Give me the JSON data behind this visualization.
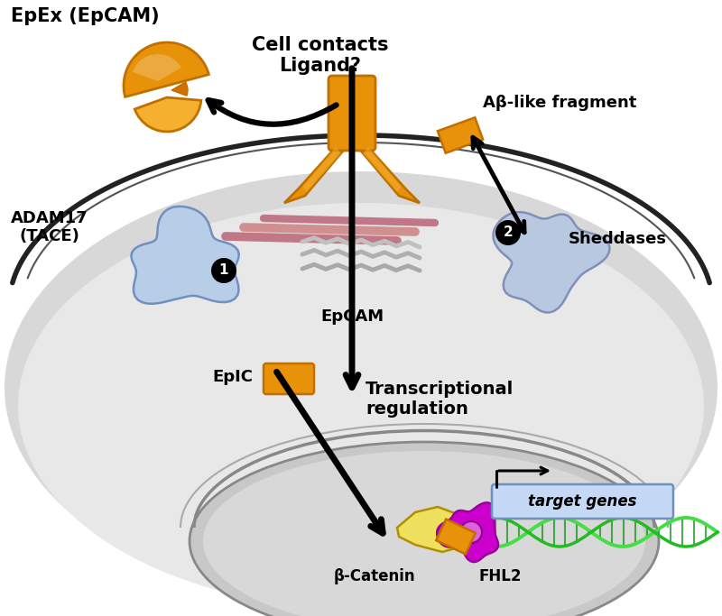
{
  "bg_color": "#ffffff",
  "orange_color": "#E8920A",
  "orange_dark": "#C07000",
  "orange_light": "#F5B030",
  "blue_light": "#B8CEE8",
  "blue_mid": "#9AB8D8",
  "purple_color": "#CC00CC",
  "yellow_color": "#F0E060",
  "green_color": "#44DD44",
  "pink_color": "#C88090",
  "gray_scissors": "#C0C0C0",
  "cell_gray": "#D8D8D8",
  "cyto_gray": "#E8E8E8",
  "nuc_gray": "#C8C8C8",
  "labels": {
    "epex": "EpEx (EpCAM)",
    "cell_contacts": "Cell contacts\nLigand?",
    "ab_fragment": "Aβ-like fragment",
    "adam17": "ADAM17\n(TACE)",
    "sheddases": "Sheddases",
    "epcam": "EpCAM",
    "epic": "EpIC",
    "transcriptional": "Transcriptional\nregulation",
    "beta_catenin": "β-Catenin",
    "fhl2": "FHL2",
    "target_genes": "target genes"
  }
}
